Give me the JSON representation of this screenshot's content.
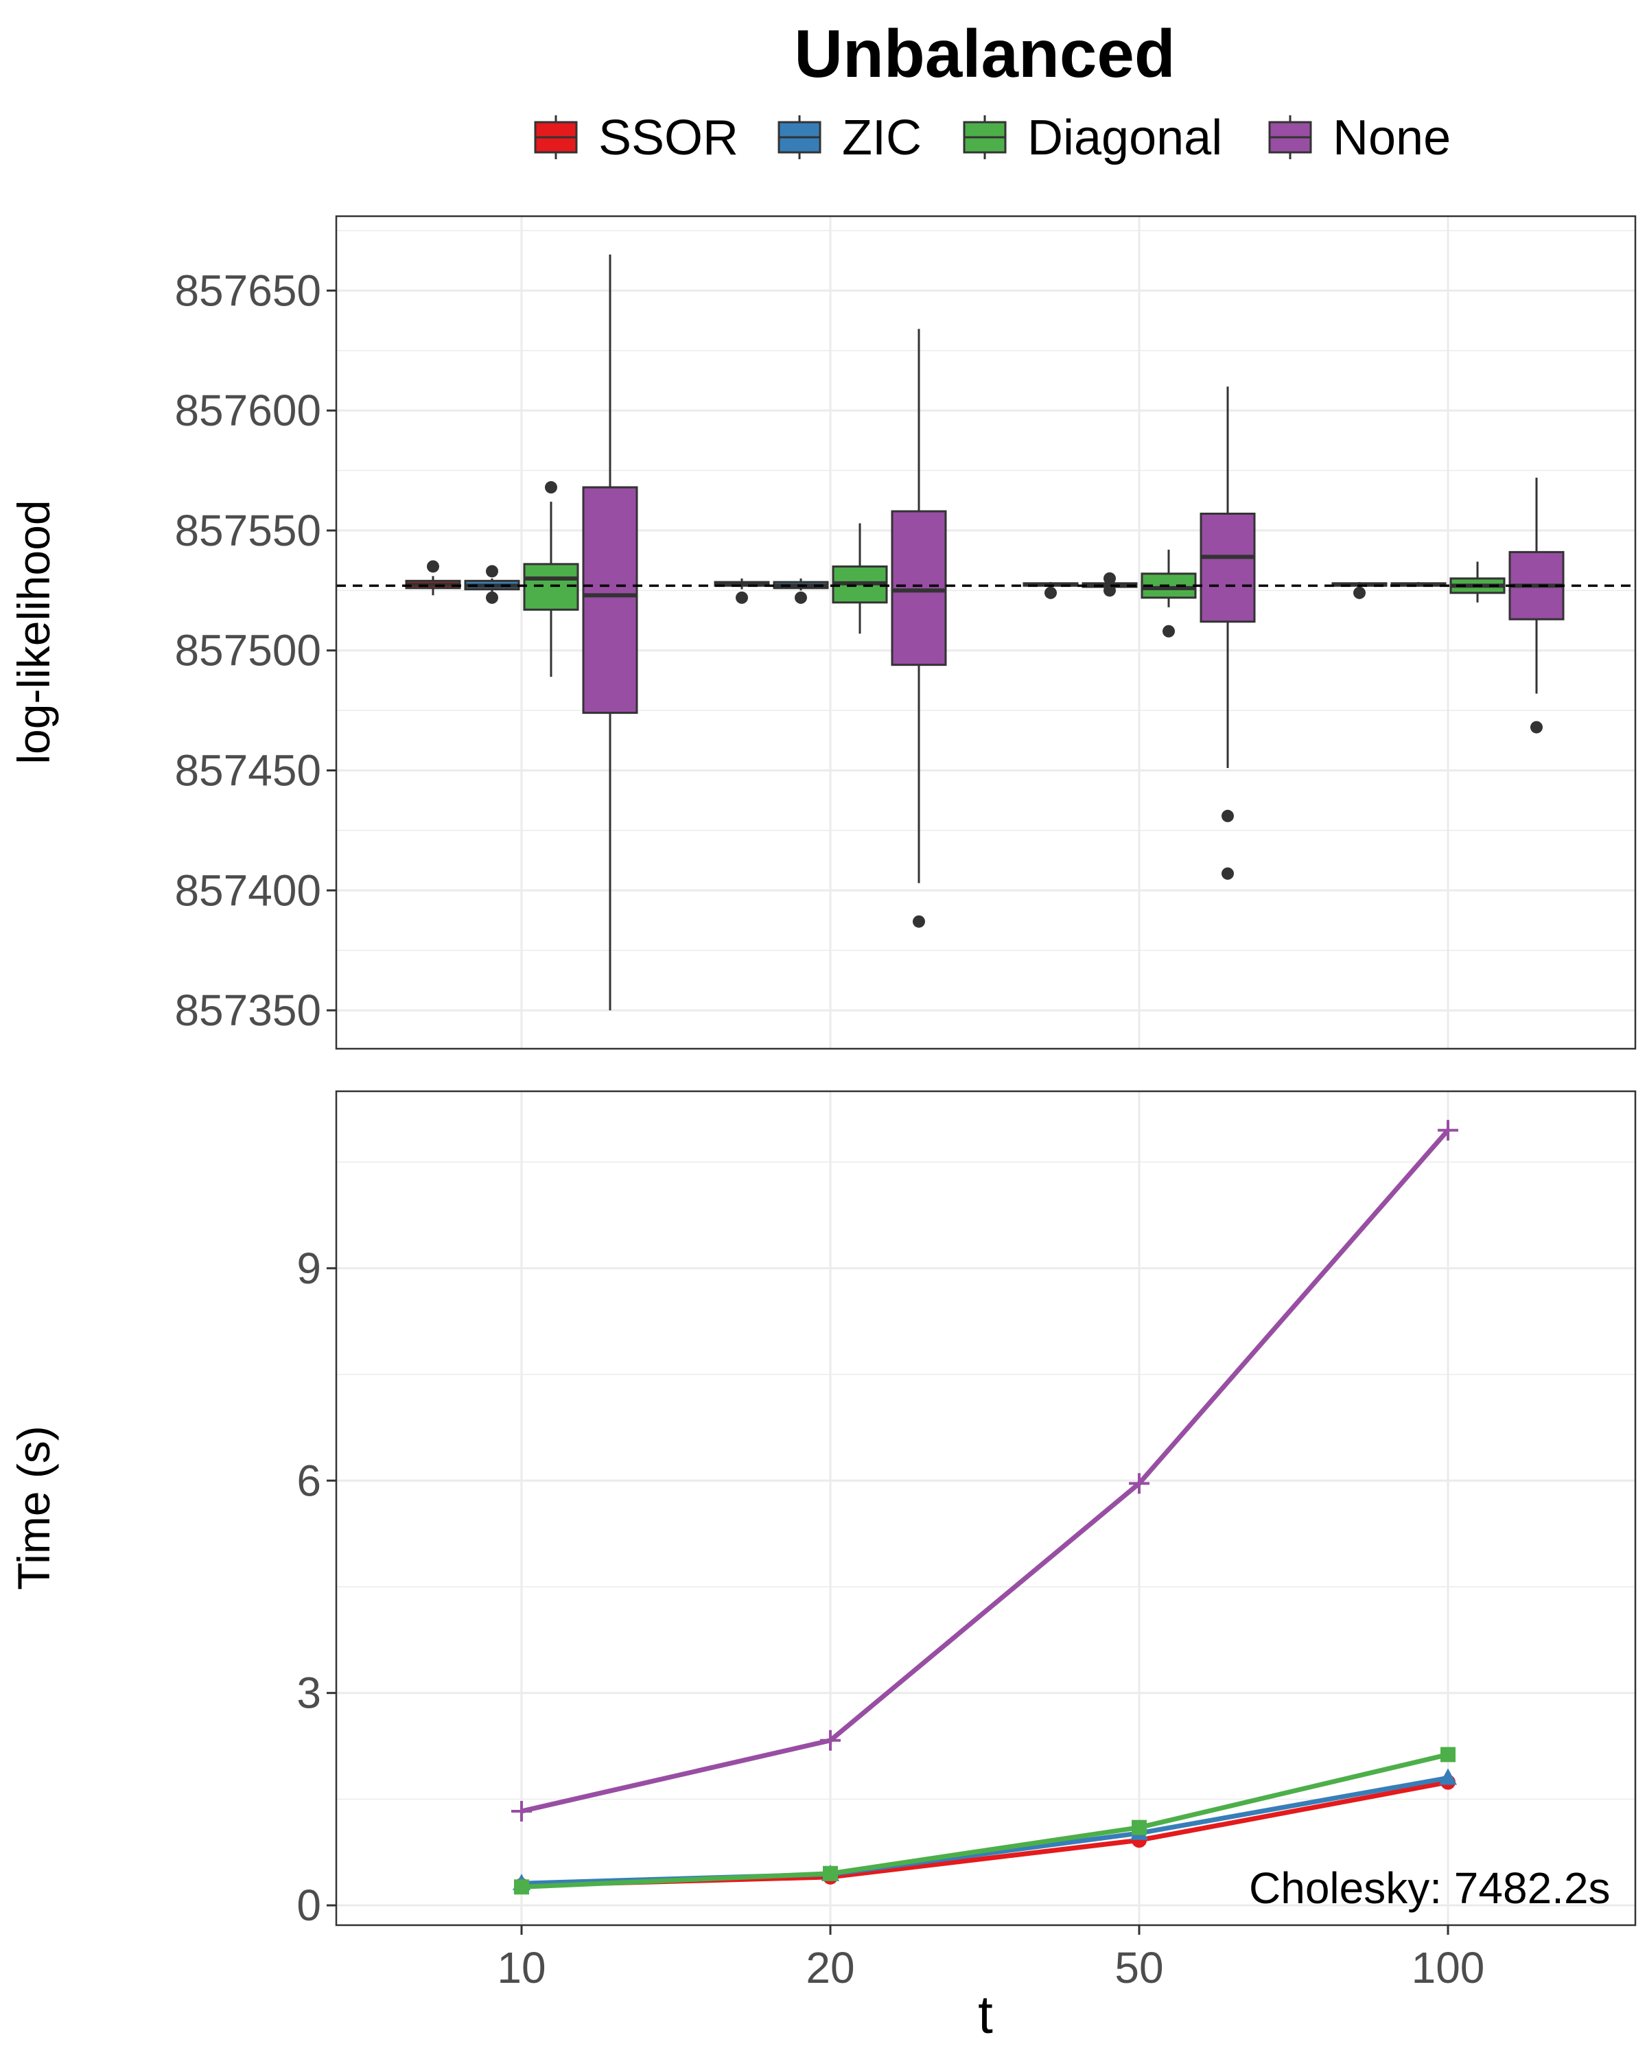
{
  "colors": {
    "SSOR": "#e41a1c",
    "ZIC": "#377eb8",
    "Diagonal": "#4daf4a",
    "None": "#984ea3",
    "outline": "#333333",
    "grid": "#ebebeb",
    "reference_line": "#000000"
  },
  "chart_data": [
    {
      "type": "box",
      "title": "Unbalanced",
      "xlabel": "",
      "ylabel": "log-likelihood",
      "categories": [
        "10",
        "20",
        "50",
        "100"
      ],
      "yticks": [
        857350,
        857400,
        857450,
        857500,
        857550,
        857600,
        857650
      ],
      "ylim": [
        857334,
        857681
      ],
      "reference_line": 857527,
      "legend": {
        "position": "top",
        "entries": [
          "SSOR",
          "ZIC",
          "Diagonal",
          "None"
        ]
      },
      "series": [
        {
          "name": "SSOR",
          "boxes": [
            {
              "whisker_low": 857523,
              "q1": 857526,
              "median": 857527.5,
              "q3": 857529,
              "whisker_high": 857531,
              "outliers": [
                857535
              ]
            },
            {
              "whisker_low": 857525.5,
              "q1": 857527,
              "median": 857527.5,
              "q3": 857528.5,
              "whisker_high": 857530,
              "outliers": [
                857522
              ]
            },
            {
              "whisker_low": 857526.5,
              "q1": 857527,
              "median": 857527.5,
              "q3": 857528,
              "whisker_high": 857528.5,
              "outliers": [
                857524
              ]
            },
            {
              "whisker_low": 857526.5,
              "q1": 857527,
              "median": 857527.5,
              "q3": 857528,
              "whisker_high": 857528.5,
              "outliers": [
                857524
              ]
            }
          ]
        },
        {
          "name": "ZIC",
          "boxes": [
            {
              "whisker_low": 857524,
              "q1": 857525.5,
              "median": 857527,
              "q3": 857529,
              "whisker_high": 857530,
              "outliers": [
                857533,
                857522
              ]
            },
            {
              "whisker_low": 857525,
              "q1": 857526,
              "median": 857527,
              "q3": 857528.5,
              "whisker_high": 857530,
              "outliers": [
                857522
              ]
            },
            {
              "whisker_low": 857526,
              "q1": 857526.5,
              "median": 857527,
              "q3": 857528,
              "whisker_high": 857529,
              "outliers": [
                857530,
                857525
              ]
            },
            {
              "whisker_low": 857526.5,
              "q1": 857527,
              "median": 857527.5,
              "q3": 857528,
              "whisker_high": 857528.5,
              "outliers": []
            }
          ]
        },
        {
          "name": "Diagonal",
          "boxes": [
            {
              "whisker_low": 857489,
              "q1": 857517,
              "median": 857530,
              "q3": 857536,
              "whisker_high": 857562,
              "outliers": [
                857568
              ]
            },
            {
              "whisker_low": 857507,
              "q1": 857520,
              "median": 857528,
              "q3": 857535,
              "whisker_high": 857553,
              "outliers": []
            },
            {
              "whisker_low": 857518,
              "q1": 857522,
              "median": 857526,
              "q3": 857532,
              "whisker_high": 857542,
              "outliers": [
                857508
              ]
            },
            {
              "whisker_low": 857520,
              "q1": 857524,
              "median": 857527,
              "q3": 857530,
              "whisker_high": 857537,
              "outliers": []
            }
          ]
        },
        {
          "name": "None",
          "boxes": [
            {
              "whisker_low": 857350,
              "q1": 857474,
              "median": 857523,
              "q3": 857568,
              "whisker_high": 857665,
              "outliers": []
            },
            {
              "whisker_low": 857403,
              "q1": 857494,
              "median": 857525,
              "q3": 857558,
              "whisker_high": 857634,
              "outliers": [
                857387
              ]
            },
            {
              "whisker_low": 857451,
              "q1": 857512,
              "median": 857539,
              "q3": 857557,
              "whisker_high": 857610,
              "outliers": [
                857431,
                857407
              ]
            },
            {
              "whisker_low": 857482,
              "q1": 857513,
              "median": 857527,
              "q3": 857541,
              "whisker_high": 857572,
              "outliers": [
                857468
              ]
            }
          ]
        }
      ]
    },
    {
      "type": "line",
      "title": "",
      "xlabel": "t",
      "ylabel": "Time (s)",
      "categories": [
        "10",
        "20",
        "50",
        "100"
      ],
      "yticks": [
        0,
        3,
        6,
        9
      ],
      "ylim": [
        -0.28,
        11.5
      ],
      "annotation": "Cholesky: 7482.2s",
      "series": [
        {
          "name": "SSOR",
          "marker": "circle",
          "values": [
            0.28,
            0.4,
            0.92,
            1.74
          ]
        },
        {
          "name": "ZIC",
          "marker": "triangle",
          "values": [
            0.31,
            0.44,
            1.02,
            1.8
          ]
        },
        {
          "name": "Diagonal",
          "marker": "square",
          "values": [
            0.26,
            0.45,
            1.1,
            2.13
          ]
        },
        {
          "name": "None",
          "marker": "plus",
          "values": [
            1.33,
            2.33,
            5.96,
            10.95
          ]
        }
      ]
    }
  ]
}
